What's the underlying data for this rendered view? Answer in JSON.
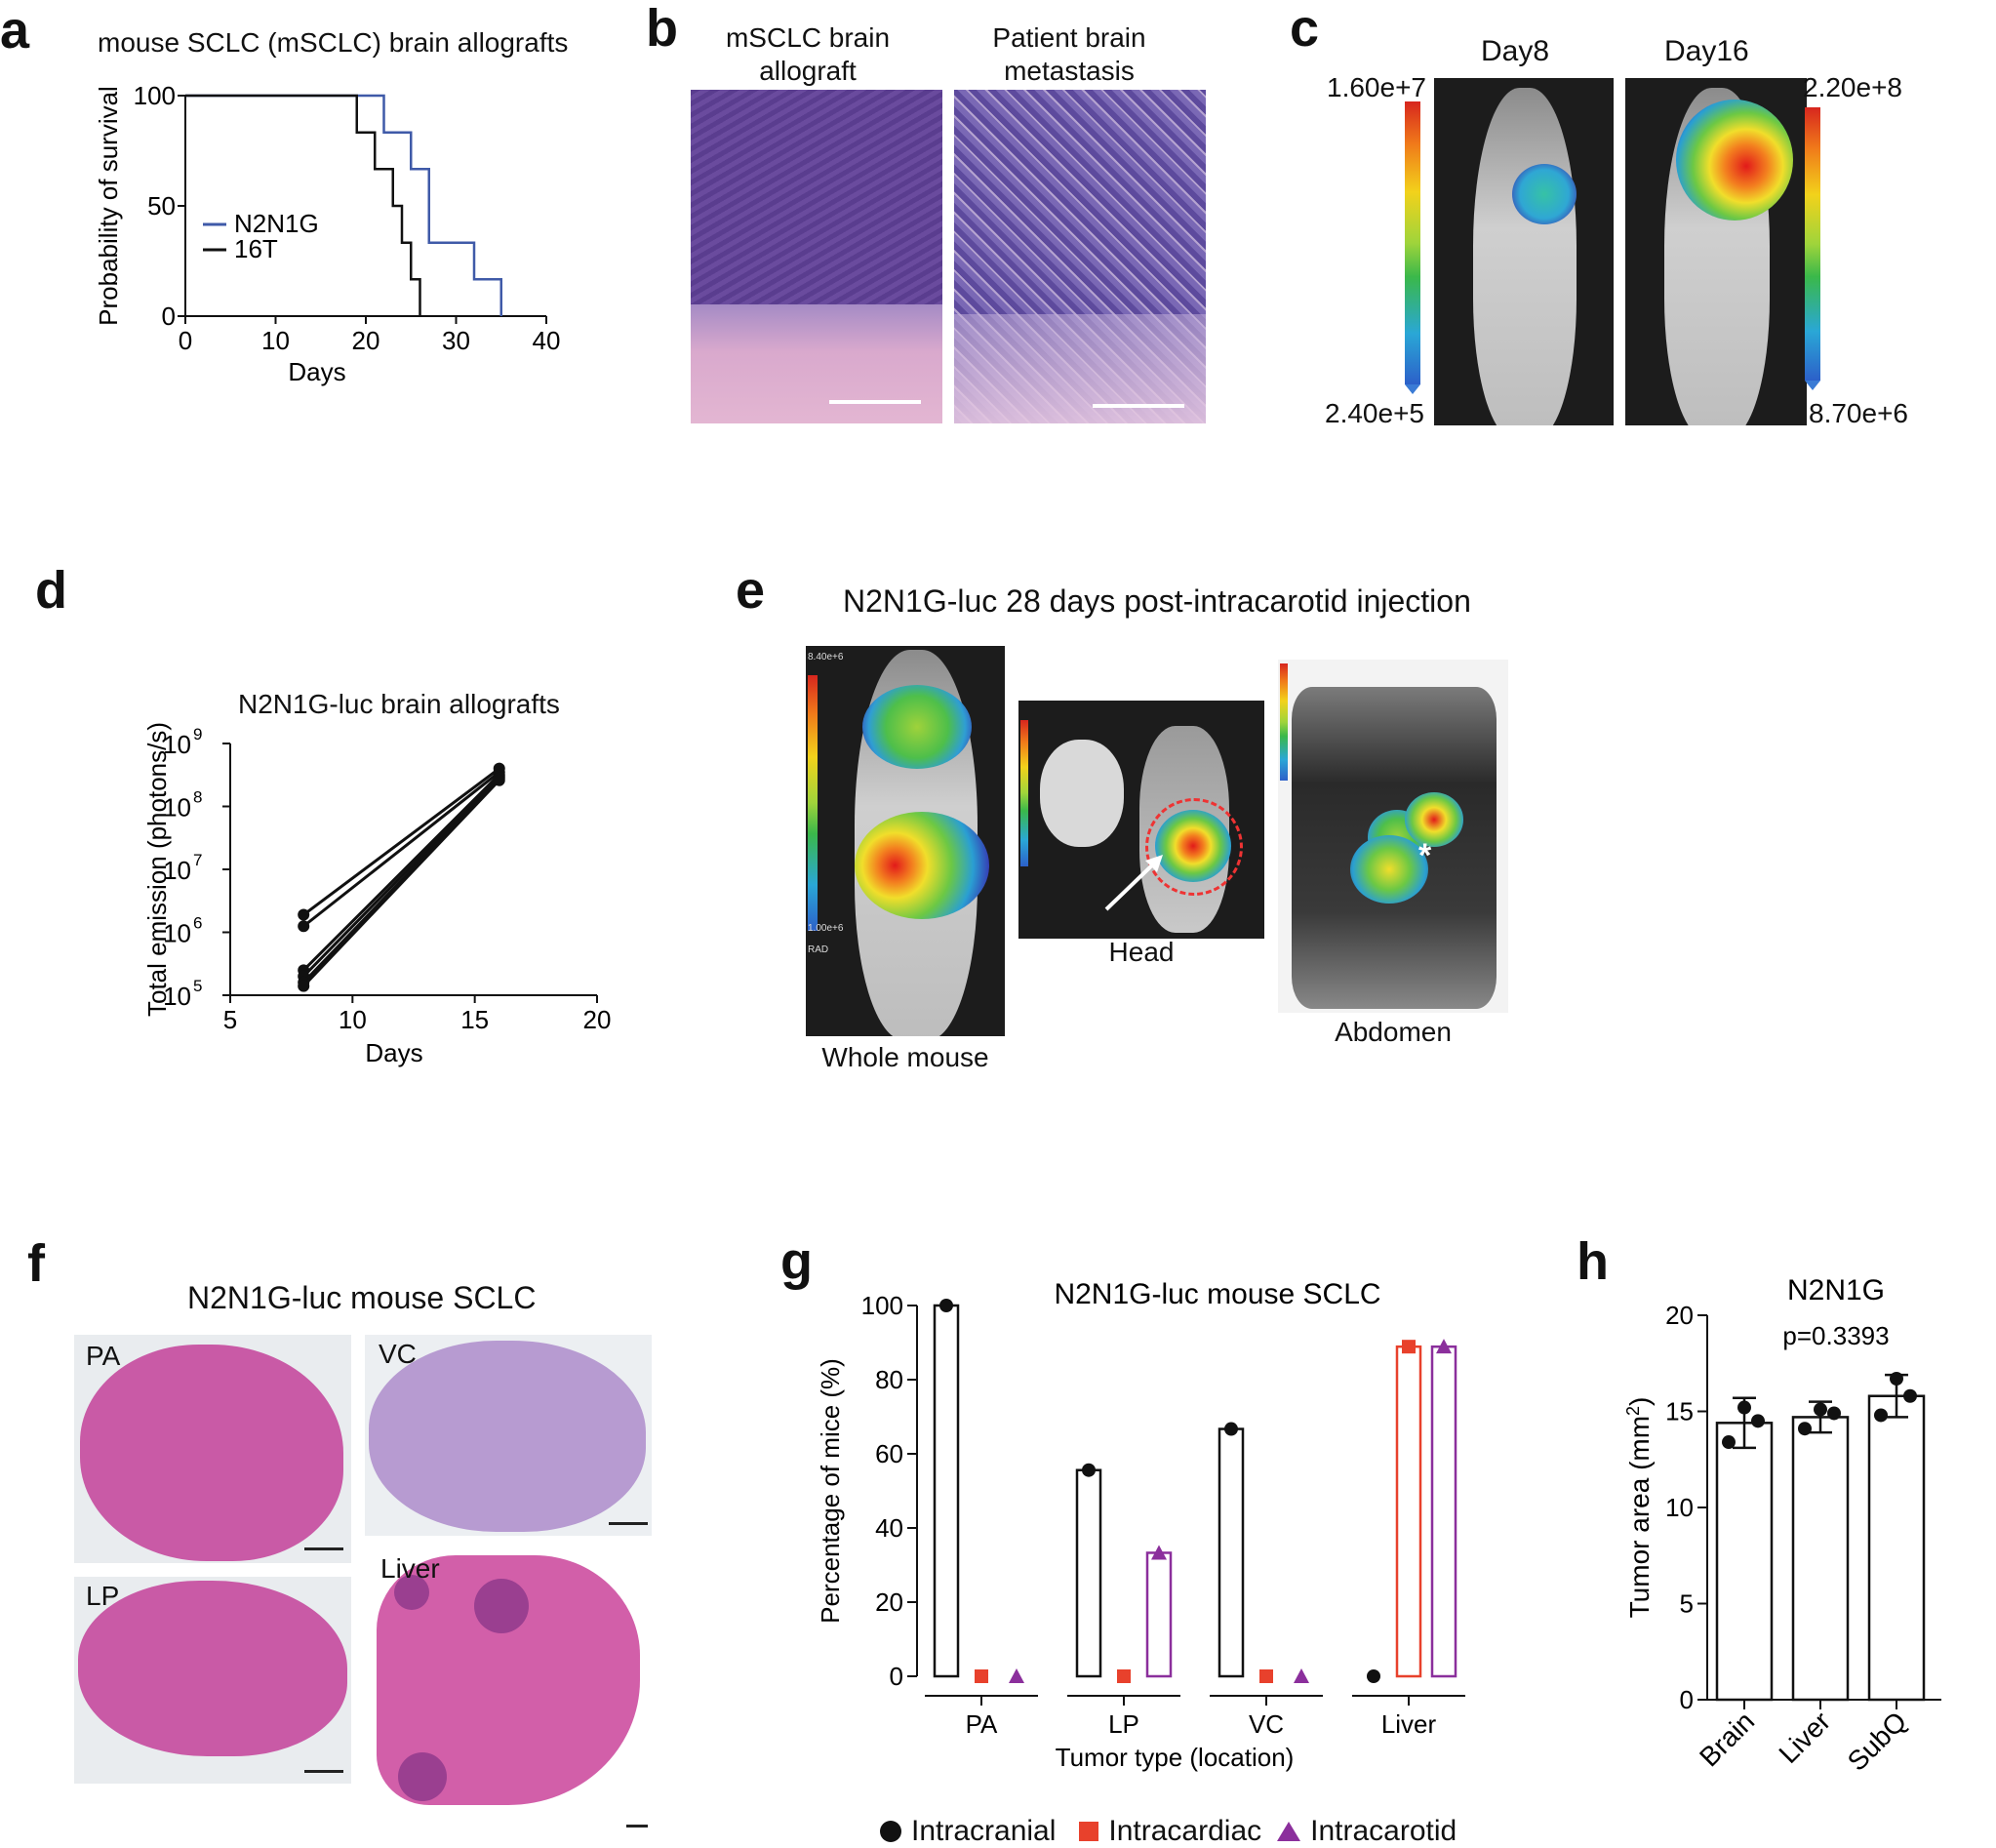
{
  "panels": {
    "a": {
      "label": "a",
      "title": "mouse SCLC (mSCLC) brain allografts"
    },
    "b": {
      "label": "b",
      "left_caption": "mSCLC brain allograft",
      "left_caption_l1": "mSCLC brain",
      "left_caption_l2": "allograft",
      "right_caption_l1": "Patient brain",
      "right_caption_l2": "metastasis"
    },
    "c": {
      "label": "c",
      "day8": "Day8",
      "day16": "Day16",
      "scale_left_max": "1.60e+7",
      "scale_left_min": "2.40e+5",
      "scale_right_max": "2.20e+8",
      "scale_right_min": "8.70e+6"
    },
    "d": {
      "label": "d",
      "title": "N2N1G-luc brain allografts"
    },
    "e": {
      "label": "e",
      "title": "N2N1G-luc 28 days post-intracarotid injection",
      "cap_whole": "Whole mouse",
      "cap_head": "Head",
      "cap_abdomen": "Abdomen",
      "whole_scale_max": "8.40e+6",
      "whole_scale_min": "1.00e+6",
      "rad": "RAD",
      "asterisk": "*"
    },
    "f": {
      "label": "f",
      "title": "N2N1G-luc mouse SCLC",
      "sections": [
        "PA",
        "VC",
        "LP",
        "Liver"
      ]
    },
    "g": {
      "label": "g",
      "legend": [
        "Intracranial",
        "Intracardiac",
        "Intracarotid"
      ]
    },
    "h": {
      "label": "h"
    }
  },
  "colors": {
    "n2n1g": "#3f5aa8",
    "t16": "#111111",
    "intracranial": "#111111",
    "intracardiac": "#e8412c",
    "intracarotid": "#8b2f9c"
  },
  "chart_data": [
    {
      "id": "a",
      "type": "line",
      "subtype": "kaplan-meier",
      "title": "mouse SCLC (mSCLC) brain allografts",
      "xlabel": "Days",
      "ylabel": "Probability of survival",
      "xlim": [
        0,
        40
      ],
      "ylim": [
        0,
        100
      ],
      "xticks": [
        0,
        10,
        20,
        30,
        40
      ],
      "yticks": [
        0,
        50,
        100
      ],
      "series": [
        {
          "name": "N2N1G",
          "x": [
            0,
            22,
            22,
            25,
            25,
            27,
            27,
            32,
            32,
            35,
            35
          ],
          "y": [
            100,
            100,
            83.3,
            83.3,
            66.7,
            66.7,
            33.3,
            33.3,
            16.7,
            16.7,
            0
          ]
        },
        {
          "name": "16T",
          "x": [
            0,
            19,
            19,
            21,
            21,
            23,
            23,
            24,
            24,
            25,
            25,
            26,
            26
          ],
          "y": [
            100,
            100,
            83.3,
            83.3,
            66.7,
            66.7,
            50,
            50,
            33.3,
            33.3,
            16.7,
            16.7,
            0
          ]
        }
      ],
      "legend": "middle-left"
    },
    {
      "id": "d",
      "type": "line",
      "title": "N2N1G-luc brain allografts",
      "xlabel": "Days",
      "ylabel": "Total emission (photons/s)",
      "xlim": [
        5,
        20
      ],
      "ylim": [
        100000,
        1000000000
      ],
      "yscale": "log",
      "xticks": [
        5,
        10,
        15,
        20
      ],
      "yticks": [
        {
          "base": "10",
          "exp": "5"
        },
        {
          "base": "10",
          "exp": "6"
        },
        {
          "base": "10",
          "exp": "7"
        },
        {
          "base": "10",
          "exp": "8"
        },
        {
          "base": "10",
          "exp": "9"
        }
      ],
      "paired": [
        {
          "x": [
            8,
            16
          ],
          "y": [
            1900000,
            400000000
          ]
        },
        {
          "x": [
            8,
            16
          ],
          "y": [
            1250000,
            350000000
          ]
        },
        {
          "x": [
            8,
            16
          ],
          "y": [
            250000,
            320000000
          ]
        },
        {
          "x": [
            8,
            16
          ],
          "y": [
            200000,
            300000000
          ]
        },
        {
          "x": [
            8,
            16
          ],
          "y": [
            160000,
            280000000
          ]
        },
        {
          "x": [
            8,
            16
          ],
          "y": [
            140000,
            260000000
          ]
        }
      ]
    },
    {
      "id": "g",
      "type": "bar",
      "title": "N2N1G-luc mouse SCLC",
      "xlabel": "Tumor type (location)",
      "ylabel": "Percentage of mice (%)",
      "ylim": [
        0,
        100
      ],
      "yticks": [
        0,
        20,
        40,
        60,
        80,
        100
      ],
      "categories": [
        "PA",
        "LP",
        "VC",
        "Liver"
      ],
      "series": [
        {
          "name": "Intracranial",
          "marker": "circle",
          "values": [
            100,
            55.6,
            66.7,
            0
          ]
        },
        {
          "name": "Intracardiac",
          "marker": "square",
          "values": [
            0,
            0,
            0,
            88.9
          ]
        },
        {
          "name": "Intracarotid",
          "marker": "triangle",
          "values": [
            0,
            33.3,
            0,
            88.9
          ]
        }
      ],
      "legend": "bottom"
    },
    {
      "id": "h",
      "type": "bar",
      "title": "N2N1G",
      "annotation": "p=0.3393",
      "ylabel": "Tumor area (mm²)",
      "ylabel_main": "Tumor area (mm",
      "ylabel_sup": "2",
      "ylabel_end": ")",
      "ylim": [
        0,
        20
      ],
      "yticks": [
        0,
        5,
        10,
        15,
        20
      ],
      "categories": [
        "Brain",
        "Liver",
        "SubQ"
      ],
      "values": [
        14.4,
        14.7,
        15.8
      ],
      "errors": [
        1.3,
        0.8,
        1.1
      ],
      "points": [
        [
          15.2,
          14.5,
          13.4
        ],
        [
          15.1,
          14.9,
          14.1
        ],
        [
          16.7,
          15.8,
          14.8
        ]
      ]
    }
  ]
}
